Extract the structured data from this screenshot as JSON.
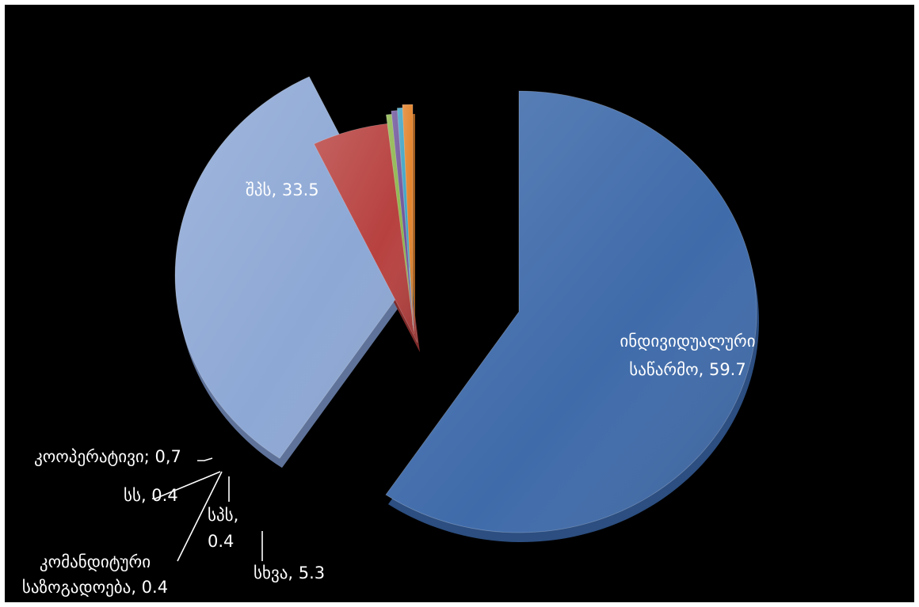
{
  "chart_data": {
    "type": "pie",
    "style": "3d exploded",
    "series": [
      {
        "label_lines": [
          "ინდივიდუალური",
          "საწარმო, 59.7"
        ],
        "value": 59.7,
        "color": "#3F6BAA",
        "side": "#2C4E80"
      },
      {
        "label_lines": [
          "შპს, 33.5"
        ],
        "value": 33.5,
        "color": "#8DA8D5",
        "side": "#5F739A"
      },
      {
        "label_lines": [
          "სხვა, 5.3"
        ],
        "value": 5.3,
        "color": "#B7413F",
        "side": "#7E2B2A"
      },
      {
        "label_lines": [
          "კომანდიტური",
          "საზოგადოება, 0.4"
        ],
        "value": 0.4,
        "color": "#8CB54A",
        "side": "#5F7E32"
      },
      {
        "label_lines": [
          "სპს,",
          "0.4"
        ],
        "value": 0.4,
        "color": "#6F559B",
        "side": "#4B3A6A"
      },
      {
        "label_lines": [
          "სს, 0.4"
        ],
        "value": 0.4,
        "color": "#3EA3C4",
        "side": "#2A7089"
      },
      {
        "label_lines": [
          "კოოპერატივი; 0,7"
        ],
        "value": 0.7,
        "color": "#E3842D",
        "side": "#A05C1E"
      }
    ]
  }
}
